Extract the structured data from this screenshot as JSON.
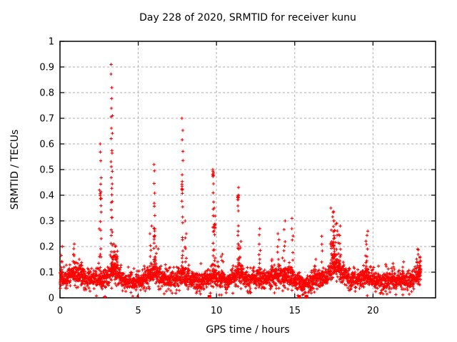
{
  "chart_data": {
    "type": "scatter",
    "title": "Day 228 of 2020, SRMTID for receiver kunu",
    "xlabel": "GPS time / hours",
    "ylabel": "SRMTID / TECUs",
    "xlim": [
      0,
      24
    ],
    "ylim": [
      0,
      1
    ],
    "xticks": [
      0,
      5,
      10,
      15,
      20
    ],
    "xtick_labels": [
      "0",
      "5",
      "10",
      "15",
      "20"
    ],
    "yticks": [
      0,
      0.1,
      0.2,
      0.3,
      0.4,
      0.5,
      0.6,
      0.7,
      0.8,
      0.9,
      1
    ],
    "ytick_labels": [
      "0",
      "0.1",
      "0.2",
      "0.3",
      "0.4",
      "0.5",
      "0.6",
      "0.7",
      "0.8",
      "0.9",
      "1"
    ],
    "grid": true,
    "grid_style": "dashed",
    "legend": "none",
    "marker": "plus",
    "marker_color": "#ff0000",
    "grid_color": "#b0b0b0",
    "axis_color": "#000000",
    "background": "#ffffff",
    "description": "Dense baseline of SRMTID values ~0.03-0.13 TECU from 0 to ~23 h GPS time, punctuated by discrete spike events; isolated near-zero points plotted on the time axis.",
    "baseline_mean": [
      [
        0.0,
        0.085
      ],
      [
        0.4,
        0.075
      ],
      [
        0.8,
        0.095
      ],
      [
        1.2,
        0.09
      ],
      [
        1.6,
        0.08
      ],
      [
        2.0,
        0.07
      ],
      [
        2.4,
        0.075
      ],
      [
        2.8,
        0.075
      ],
      [
        3.1,
        0.08
      ],
      [
        3.4,
        0.105
      ],
      [
        3.7,
        0.09
      ],
      [
        4.1,
        0.065
      ],
      [
        4.6,
        0.06
      ],
      [
        5.1,
        0.065
      ],
      [
        5.6,
        0.08
      ],
      [
        6.0,
        0.1
      ],
      [
        6.4,
        0.085
      ],
      [
        6.8,
        0.07
      ],
      [
        7.2,
        0.07
      ],
      [
        7.6,
        0.08
      ],
      [
        7.9,
        0.095
      ],
      [
        8.2,
        0.08
      ],
      [
        8.6,
        0.065
      ],
      [
        9.0,
        0.06
      ],
      [
        9.4,
        0.07
      ],
      [
        9.8,
        0.085
      ],
      [
        10.2,
        0.075
      ],
      [
        10.7,
        0.07
      ],
      [
        11.1,
        0.08
      ],
      [
        11.4,
        0.095
      ],
      [
        11.8,
        0.08
      ],
      [
        12.2,
        0.07
      ],
      [
        12.6,
        0.08
      ],
      [
        13.0,
        0.07
      ],
      [
        13.4,
        0.075
      ],
      [
        13.8,
        0.085
      ],
      [
        14.2,
        0.085
      ],
      [
        14.6,
        0.09
      ],
      [
        15.0,
        0.07
      ],
      [
        15.4,
        0.055
      ],
      [
        15.8,
        0.055
      ],
      [
        16.2,
        0.065
      ],
      [
        16.6,
        0.075
      ],
      [
        17.0,
        0.08
      ],
      [
        17.4,
        0.115
      ],
      [
        17.7,
        0.12
      ],
      [
        18.0,
        0.1
      ],
      [
        18.3,
        0.08
      ],
      [
        18.7,
        0.07
      ],
      [
        19.1,
        0.075
      ],
      [
        19.5,
        0.085
      ],
      [
        19.8,
        0.08
      ],
      [
        20.2,
        0.065
      ],
      [
        20.7,
        0.06
      ],
      [
        21.2,
        0.07
      ],
      [
        21.7,
        0.07
      ],
      [
        22.2,
        0.065
      ],
      [
        22.6,
        0.075
      ],
      [
        23.0,
        0.09
      ],
      [
        23.05,
        0.115
      ]
    ],
    "spike_events": [
      {
        "t": 0.1,
        "peak": 0.2,
        "n": 6,
        "w": 0.12
      },
      {
        "t": 0.85,
        "peak": 0.21,
        "n": 10,
        "w": 0.2
      },
      {
        "t": 1.35,
        "peak": 0.15,
        "n": 10,
        "w": 0.3
      },
      {
        "t": 2.52,
        "peak": 0.42,
        "n": 4,
        "w": 0.05
      },
      {
        "t": 2.6,
        "peak": 0.6,
        "n": 18,
        "w": 0.07,
        "blob": 0.4
      },
      {
        "t": 3.29,
        "peak": 0.91,
        "n": 26,
        "w": 0.06
      },
      {
        "t": 3.34,
        "peak": 0.71,
        "n": 12,
        "w": 0.05
      },
      {
        "t": 3.5,
        "peak": 0.21,
        "n": 26,
        "w": 0.35,
        "blob": 0.16
      },
      {
        "t": 5.8,
        "peak": 0.28,
        "n": 9,
        "w": 0.12
      },
      {
        "t": 6.03,
        "peak": 0.52,
        "n": 16,
        "w": 0.07,
        "blob": 0.25
      },
      {
        "t": 6.18,
        "peak": 0.2,
        "n": 12,
        "w": 0.25
      },
      {
        "t": 7.82,
        "peak": 0.7,
        "n": 20,
        "w": 0.07,
        "blob": 0.42
      },
      {
        "t": 8.02,
        "peak": 0.3,
        "n": 10,
        "w": 0.15
      },
      {
        "t": 9.79,
        "peak": 0.5,
        "n": 15,
        "w": 0.06,
        "blob": 0.49
      },
      {
        "t": 9.87,
        "peak": 0.35,
        "n": 10,
        "w": 0.08,
        "blob": 0.28
      },
      {
        "t": 10.35,
        "peak": 0.17,
        "n": 8,
        "w": 0.15
      },
      {
        "t": 11.38,
        "peak": 0.43,
        "n": 14,
        "w": 0.06,
        "blob": 0.39
      },
      {
        "t": 11.52,
        "peak": 0.22,
        "n": 12,
        "w": 0.22
      },
      {
        "t": 12.76,
        "peak": 0.27,
        "n": 10,
        "w": 0.1
      },
      {
        "t": 13.55,
        "peak": 0.15,
        "n": 8,
        "w": 0.2
      },
      {
        "t": 13.95,
        "peak": 0.25,
        "n": 9,
        "w": 0.1
      },
      {
        "t": 14.35,
        "peak": 0.3,
        "n": 9,
        "w": 0.1
      },
      {
        "t": 14.85,
        "peak": 0.31,
        "n": 9,
        "w": 0.1
      },
      {
        "t": 16.25,
        "peak": 0.15,
        "n": 8,
        "w": 0.2
      },
      {
        "t": 16.74,
        "peak": 0.24,
        "n": 8,
        "w": 0.08
      },
      {
        "t": 17.5,
        "peak": 0.35,
        "n": 30,
        "w": 0.45,
        "blob": 0.2
      },
      {
        "t": 17.55,
        "peak": 0.3,
        "n": 16,
        "w": 0.15
      },
      {
        "t": 17.85,
        "peak": 0.28,
        "n": 12,
        "w": 0.15
      },
      {
        "t": 19.6,
        "peak": 0.26,
        "n": 14,
        "w": 0.15
      },
      {
        "t": 20.9,
        "peak": 0.13,
        "n": 6,
        "w": 0.2
      },
      {
        "t": 21.9,
        "peak": 0.14,
        "n": 6,
        "w": 0.2
      },
      {
        "t": 22.85,
        "peak": 0.19,
        "n": 10,
        "w": 0.12
      },
      {
        "t": 23.0,
        "peak": 0.16,
        "n": 14,
        "w": 0.1
      }
    ],
    "zero_square_markers_t": [
      9.55,
      15.28,
      15.74
    ],
    "near_zero_plus_t": [
      2.84,
      2.9
    ],
    "synthesis": {
      "seed": 11,
      "t_start": 0.0,
      "t_end": 23.05,
      "dt": 0.008333,
      "noise_sigma": 0.02,
      "floor": 0.006
    }
  }
}
